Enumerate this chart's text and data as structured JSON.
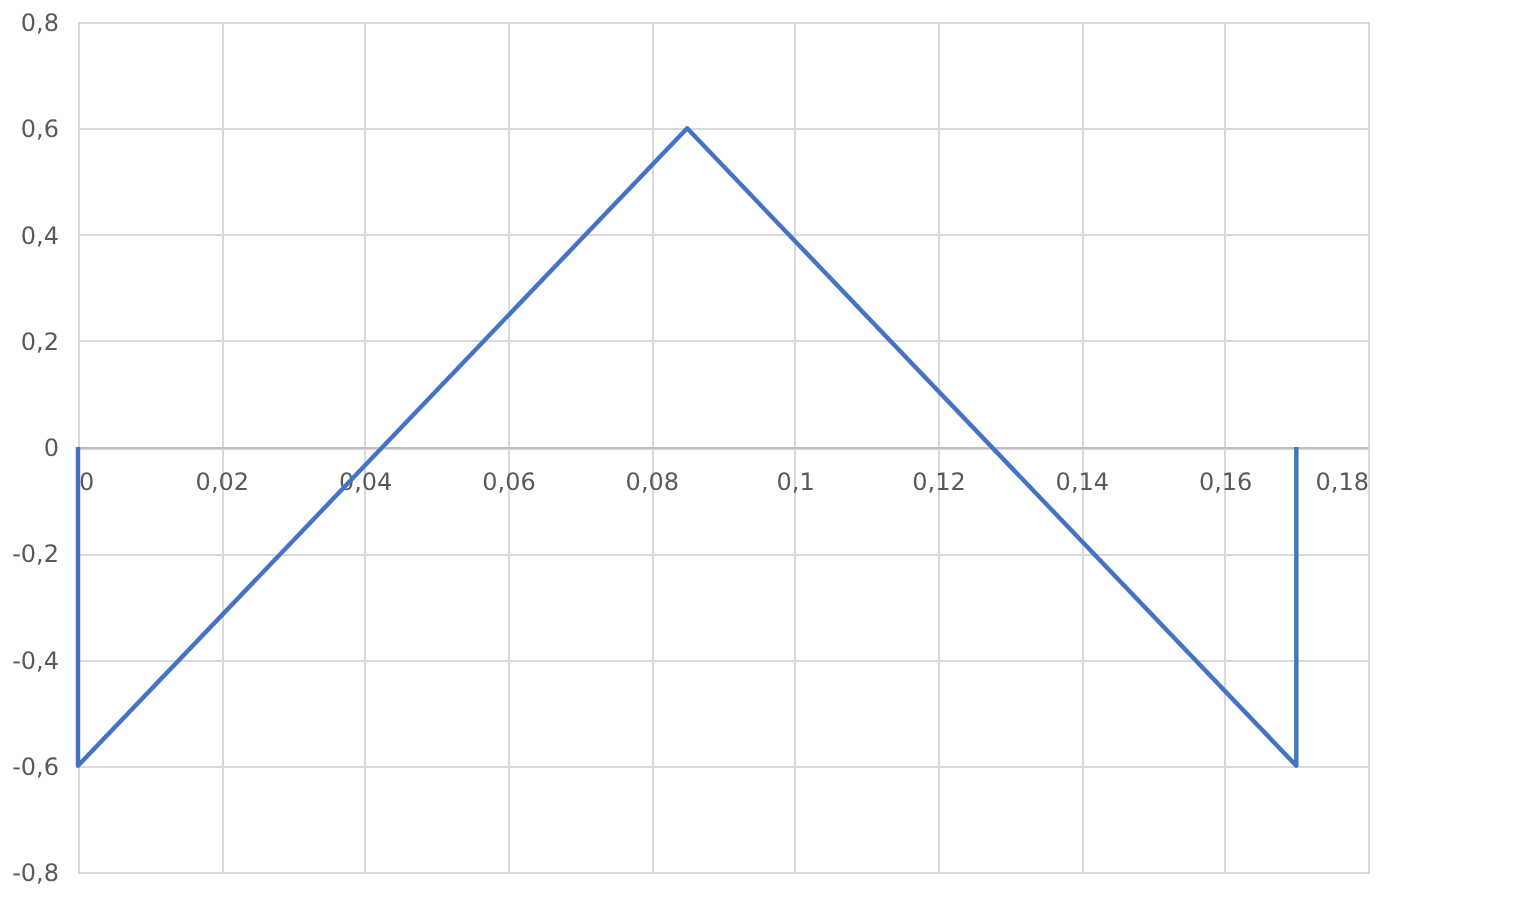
{
  "chart_data": {
    "type": "line",
    "x": [
      0,
      0,
      0.085,
      0.17,
      0.17
    ],
    "series": [
      {
        "color": "#4472c4",
        "values": [
          0,
          -0.6,
          0.6,
          -0.6,
          0
        ]
      }
    ],
    "xlim": [
      0,
      0.18
    ],
    "xticks": [
      0,
      {
        "value": 0.02,
        "label": "0,02"
      },
      {
        "value": 0.04,
        "label": "0,04"
      },
      {
        "value": 0.06,
        "label": "0,06"
      },
      {
        "value": 0.08,
        "label": "0,08"
      },
      {
        "value": 0.1,
        "label": "0,1"
      },
      {
        "value": 0.12,
        "label": "0,12"
      },
      {
        "value": 0.14,
        "label": "0,14"
      },
      {
        "value": 0.16,
        "label": "0,16"
      },
      {
        "value": 0.18,
        "label": "0,18"
      }
    ],
    "ylim": [
      -0.8,
      0.8
    ],
    "yticks": [
      {
        "value": -0.8,
        "label": "-0,8"
      },
      {
        "value": -0.6,
        "label": "-0,6"
      },
      {
        "value": -0.4,
        "label": "-0,4"
      },
      {
        "value": -0.2,
        "label": "-0,2"
      },
      0,
      {
        "value": 0.2,
        "label": "0,2"
      },
      {
        "value": 0.4,
        "label": "0,4"
      },
      {
        "value": 0.6,
        "label": "0,6"
      },
      {
        "value": 0.8,
        "label": "0,8"
      }
    ],
    "grid": true,
    "marker": "none",
    "line_style": "solid"
  }
}
